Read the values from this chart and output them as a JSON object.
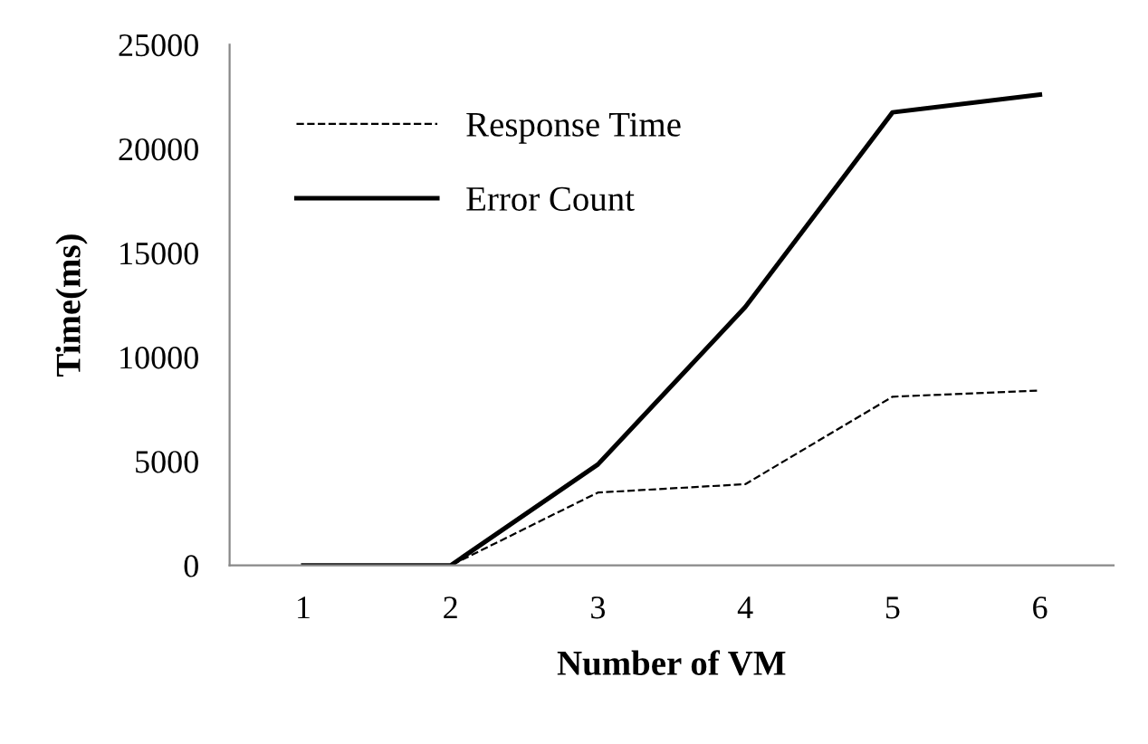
{
  "chart_data": {
    "type": "line",
    "xlabel": "Number of VM",
    "ylabel": "Time(ms)",
    "categories": [
      "1",
      "2",
      "3",
      "4",
      "5",
      "6"
    ],
    "series": [
      {
        "name": "Response Time",
        "color": "#000000",
        "line_style": "dashed",
        "values": [
          0,
          0,
          3500,
          3900,
          8100,
          8400
        ]
      },
      {
        "name": "Error Count",
        "color": "#000000",
        "line_style": "solid",
        "values": [
          0,
          0,
          4850,
          12400,
          21750,
          22600
        ]
      }
    ],
    "ylim": [
      0,
      25000
    ],
    "yticks": [
      0,
      5000,
      10000,
      15000,
      20000,
      25000
    ],
    "grid": false,
    "legend": "top left",
    "marker": "none"
  }
}
